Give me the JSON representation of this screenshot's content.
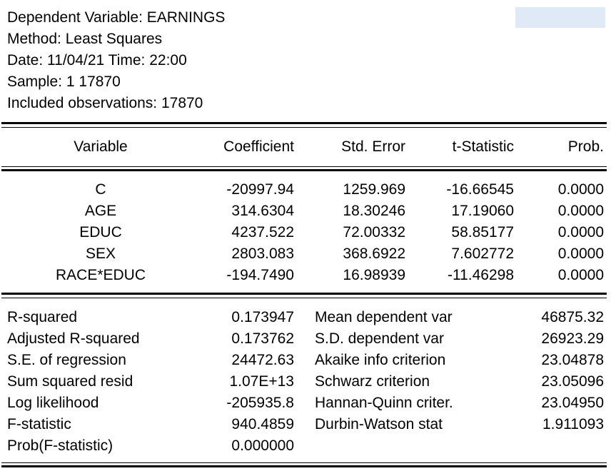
{
  "header": {
    "dependent": "Dependent Variable: EARNINGS",
    "method": "Method: Least Squares",
    "datetime": "Date: 11/04/21   Time: 22:00",
    "sample": "Sample: 1 17870",
    "observations": "Included observations: 17870"
  },
  "table": {
    "headers": [
      "Variable",
      "Coefficient",
      "Std. Error",
      "t-Statistic",
      "Prob."
    ],
    "rows": [
      [
        "C",
        "-20997.94",
        "1259.969",
        "-16.66545",
        "0.0000"
      ],
      [
        "AGE",
        "314.6304",
        "18.30246",
        "17.19060",
        "0.0000"
      ],
      [
        "EDUC",
        "4237.522",
        "72.00332",
        "58.85177",
        "0.0000"
      ],
      [
        "SEX",
        "2803.083",
        "368.6922",
        "7.602772",
        "0.0000"
      ],
      [
        "RACE*EDUC",
        "-194.7490",
        "16.98939",
        "-11.46298",
        "0.0000"
      ]
    ]
  },
  "stats": {
    "rows": [
      [
        "R-squared",
        "0.173947",
        "Mean dependent var",
        "46875.32"
      ],
      [
        "Adjusted R-squared",
        "0.173762",
        "S.D. dependent var",
        "26923.29"
      ],
      [
        "S.E. of regression",
        "24472.63",
        "Akaike info criterion",
        "23.04878"
      ],
      [
        "Sum squared resid",
        "1.07E+13",
        "Schwarz criterion",
        "23.05096"
      ],
      [
        "Log likelihood",
        "-205935.8",
        "Hannan-Quinn criter.",
        "23.04950"
      ],
      [
        "F-statistic",
        "940.4859",
        "Durbin-Watson stat",
        "1.911093"
      ],
      [
        "Prob(F-statistic)",
        "0.000000",
        "",
        ""
      ]
    ]
  },
  "colors": {
    "highlight": "#dfeaf6",
    "text": "#000000",
    "background": "#ffffff"
  }
}
